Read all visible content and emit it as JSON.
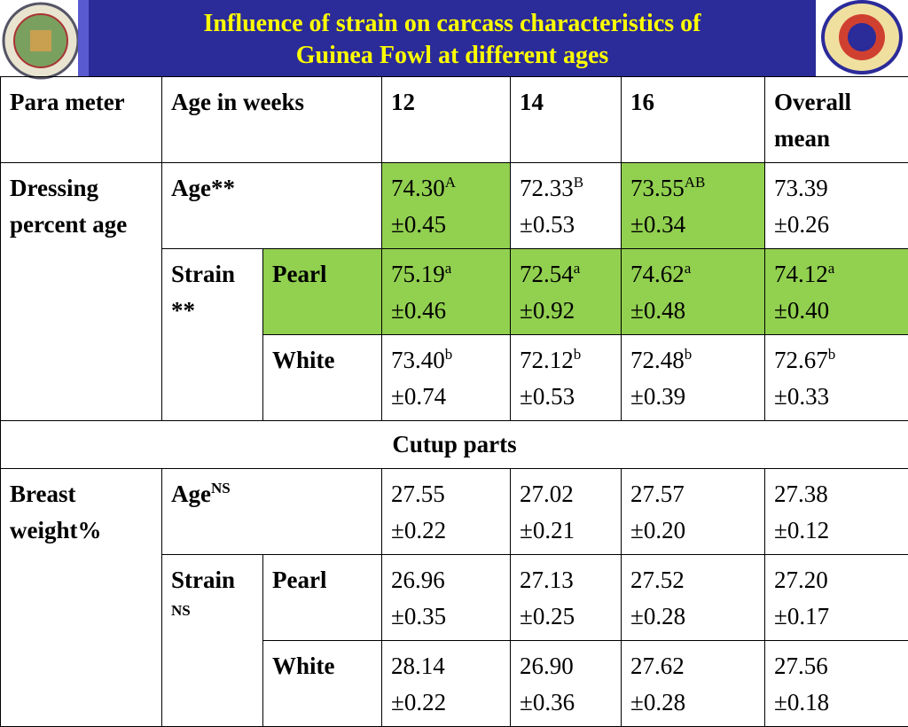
{
  "header": {
    "title": [
      "Influence of strain on carcass characteristics of",
      "Guinea Fowl at different ages"
    ]
  },
  "table": {
    "head": [
      "Para meter",
      "Age in weeks",
      "12",
      "14",
      "16",
      "Overall mean"
    ],
    "sections": [
      {
        "parameter": "Dressing percent age",
        "rows": [
          {
            "label": "Age**",
            "cells": [
              {
                "mean": "74.30",
                "sup": "A",
                "se": "±0.45",
                "fill": "#92d050"
              },
              {
                "mean": "72.33",
                "sup": "B",
                "se": "±0.53"
              },
              {
                "mean": "73.55",
                "sup": "AB",
                "se": "±0.34",
                "fill": "#92d050"
              },
              {
                "mean": "73.39",
                "se": "±0.26"
              }
            ]
          },
          {
            "group": "Strain **",
            "label": "Pearl",
            "fill": "#92d050",
            "cells": [
              {
                "mean": "75.19",
                "sup": "a",
                "se": "±0.46",
                "fill": "#92d050"
              },
              {
                "mean": "72.54",
                "sup": "a",
                "se": "±0.92",
                "fill": "#92d050"
              },
              {
                "mean": "74.62",
                "sup": "a",
                "se": "±0.48",
                "fill": "#92d050"
              },
              {
                "mean": "74.12",
                "sup": "a",
                "se": "±0.40",
                "fill": "#92d050"
              }
            ]
          },
          {
            "label": "White",
            "cells": [
              {
                "mean": "73.40",
                "sup": "b",
                "se": "±0.74"
              },
              {
                "mean": "72.12",
                "sup": "b",
                "se": "±0.53"
              },
              {
                "mean": "72.48",
                "sup": "b",
                "se": "±0.39"
              },
              {
                "mean": "72.67",
                "sup": "b",
                "se": "±0.33"
              }
            ]
          }
        ]
      },
      {
        "heading": "Cutup parts",
        "parameter": "Breast weight%",
        "rows": [
          {
            "label": "Age",
            "label_sup": "NS",
            "cells": [
              {
                "mean": "27.55",
                "se": "±0.22"
              },
              {
                "mean": "27.02",
                "se": "±0.21"
              },
              {
                "mean": "27.57",
                "se": "±0.20"
              },
              {
                "mean": "27.38",
                "se": "±0.12"
              }
            ]
          },
          {
            "group": "Strain",
            "group_sup": "NS",
            "label": "Pearl",
            "cells": [
              {
                "mean": "26.96",
                "se": "±0.35"
              },
              {
                "mean": "27.13",
                "se": "±0.25"
              },
              {
                "mean": "27.52",
                "se": "±0.28"
              },
              {
                "mean": "27.20",
                "se": "±0.17"
              }
            ]
          },
          {
            "label": "White",
            "cells": [
              {
                "mean": "28.14",
                "se": "±0.22"
              },
              {
                "mean": "26.90",
                "se": "±0.36"
              },
              {
                "mean": "27.62",
                "se": "±0.28"
              },
              {
                "mean": "27.56",
                "se": "±0.18"
              }
            ]
          }
        ]
      }
    ]
  }
}
